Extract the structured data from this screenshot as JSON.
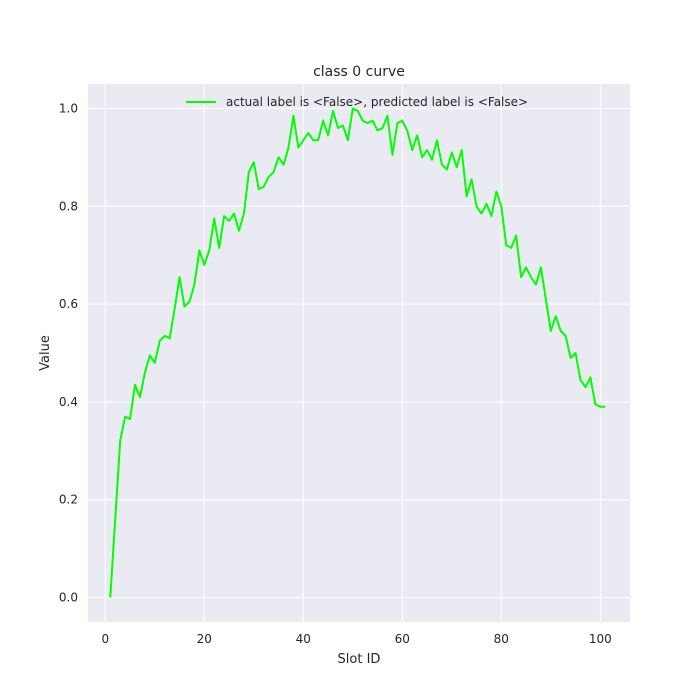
{
  "chart_data": {
    "type": "line",
    "title": "class 0 curve",
    "xlabel": "Slot ID",
    "ylabel": "Value",
    "xlim": [
      -3.5,
      106
    ],
    "ylim": [
      -0.05,
      1.05
    ],
    "xticks": [
      0,
      20,
      40,
      60,
      80,
      100
    ],
    "yticks": [
      0.0,
      0.2,
      0.4,
      0.6,
      0.8,
      1.0
    ],
    "grid": true,
    "legend_position": "top-center",
    "series": [
      {
        "name": "actual label is <False>, predicted label is <False>",
        "color": "#00ff00",
        "x": [
          1,
          2,
          3,
          4,
          5,
          6,
          7,
          8,
          9,
          10,
          11,
          12,
          13,
          14,
          15,
          16,
          17,
          18,
          19,
          20,
          21,
          22,
          23,
          24,
          25,
          26,
          27,
          28,
          29,
          30,
          31,
          32,
          33,
          34,
          35,
          36,
          37,
          38,
          39,
          40,
          41,
          42,
          43,
          44,
          45,
          46,
          47,
          48,
          49,
          50,
          51,
          52,
          53,
          54,
          55,
          56,
          57,
          58,
          59,
          60,
          61,
          62,
          63,
          64,
          65,
          66,
          67,
          68,
          69,
          70,
          71,
          72,
          73,
          74,
          75,
          76,
          77,
          78,
          79,
          80,
          81,
          82,
          83,
          84,
          85,
          86,
          87,
          88,
          89,
          90,
          91,
          92,
          93,
          94,
          95,
          96,
          97,
          98,
          99,
          100,
          101
        ],
        "y": [
          0.0,
          0.16,
          0.32,
          0.37,
          0.365,
          0.435,
          0.41,
          0.46,
          0.495,
          0.48,
          0.525,
          0.535,
          0.53,
          0.59,
          0.655,
          0.595,
          0.605,
          0.64,
          0.71,
          0.68,
          0.71,
          0.775,
          0.715,
          0.78,
          0.77,
          0.785,
          0.75,
          0.785,
          0.87,
          0.89,
          0.835,
          0.84,
          0.86,
          0.87,
          0.9,
          0.885,
          0.92,
          0.985,
          0.92,
          0.935,
          0.95,
          0.935,
          0.935,
          0.975,
          0.945,
          0.995,
          0.96,
          0.965,
          0.935,
          1.0,
          0.995,
          0.975,
          0.97,
          0.975,
          0.955,
          0.96,
          0.985,
          0.905,
          0.97,
          0.975,
          0.955,
          0.915,
          0.945,
          0.9,
          0.915,
          0.895,
          0.935,
          0.885,
          0.875,
          0.91,
          0.88,
          0.915,
          0.82,
          0.855,
          0.8,
          0.785,
          0.805,
          0.78,
          0.83,
          0.8,
          0.72,
          0.715,
          0.74,
          0.655,
          0.675,
          0.655,
          0.64,
          0.675,
          0.61,
          0.545,
          0.575,
          0.545,
          0.535,
          0.49,
          0.5,
          0.445,
          0.43,
          0.45,
          0.395,
          0.39,
          0.39
        ]
      }
    ]
  }
}
